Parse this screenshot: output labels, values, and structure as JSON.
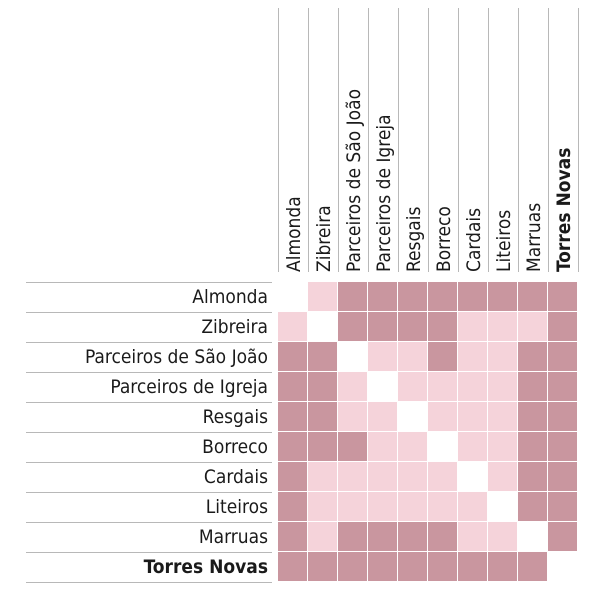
{
  "teams": [
    "Almonda",
    "Zibreira",
    "Parceiros de São João",
    "Parceiros de Igreja",
    "Resgais",
    "Borreco",
    "Cardais",
    "Liteiros",
    "Marruas",
    "Torres Novas"
  ],
  "highlight_team": "Torres Novas",
  "colors": {
    "dark": "#c9969f",
    "light": "#f5d3da",
    "empty": "#ffffff"
  },
  "matrix": [
    [
      0,
      1,
      2,
      2,
      2,
      2,
      2,
      2,
      2,
      2
    ],
    [
      1,
      0,
      2,
      2,
      2,
      2,
      1,
      1,
      1,
      2
    ],
    [
      2,
      2,
      0,
      1,
      1,
      2,
      1,
      1,
      2,
      2
    ],
    [
      2,
      2,
      1,
      0,
      1,
      1,
      1,
      1,
      2,
      2
    ],
    [
      2,
      2,
      1,
      1,
      0,
      1,
      1,
      1,
      2,
      2
    ],
    [
      2,
      2,
      2,
      1,
      1,
      0,
      1,
      1,
      2,
      2
    ],
    [
      2,
      1,
      1,
      1,
      1,
      1,
      0,
      1,
      2,
      2
    ],
    [
      2,
      1,
      1,
      1,
      1,
      1,
      1,
      0,
      2,
      2
    ],
    [
      2,
      1,
      2,
      2,
      2,
      2,
      1,
      1,
      0,
      2
    ],
    [
      2,
      2,
      2,
      2,
      2,
      2,
      2,
      2,
      2,
      0
    ]
  ]
}
